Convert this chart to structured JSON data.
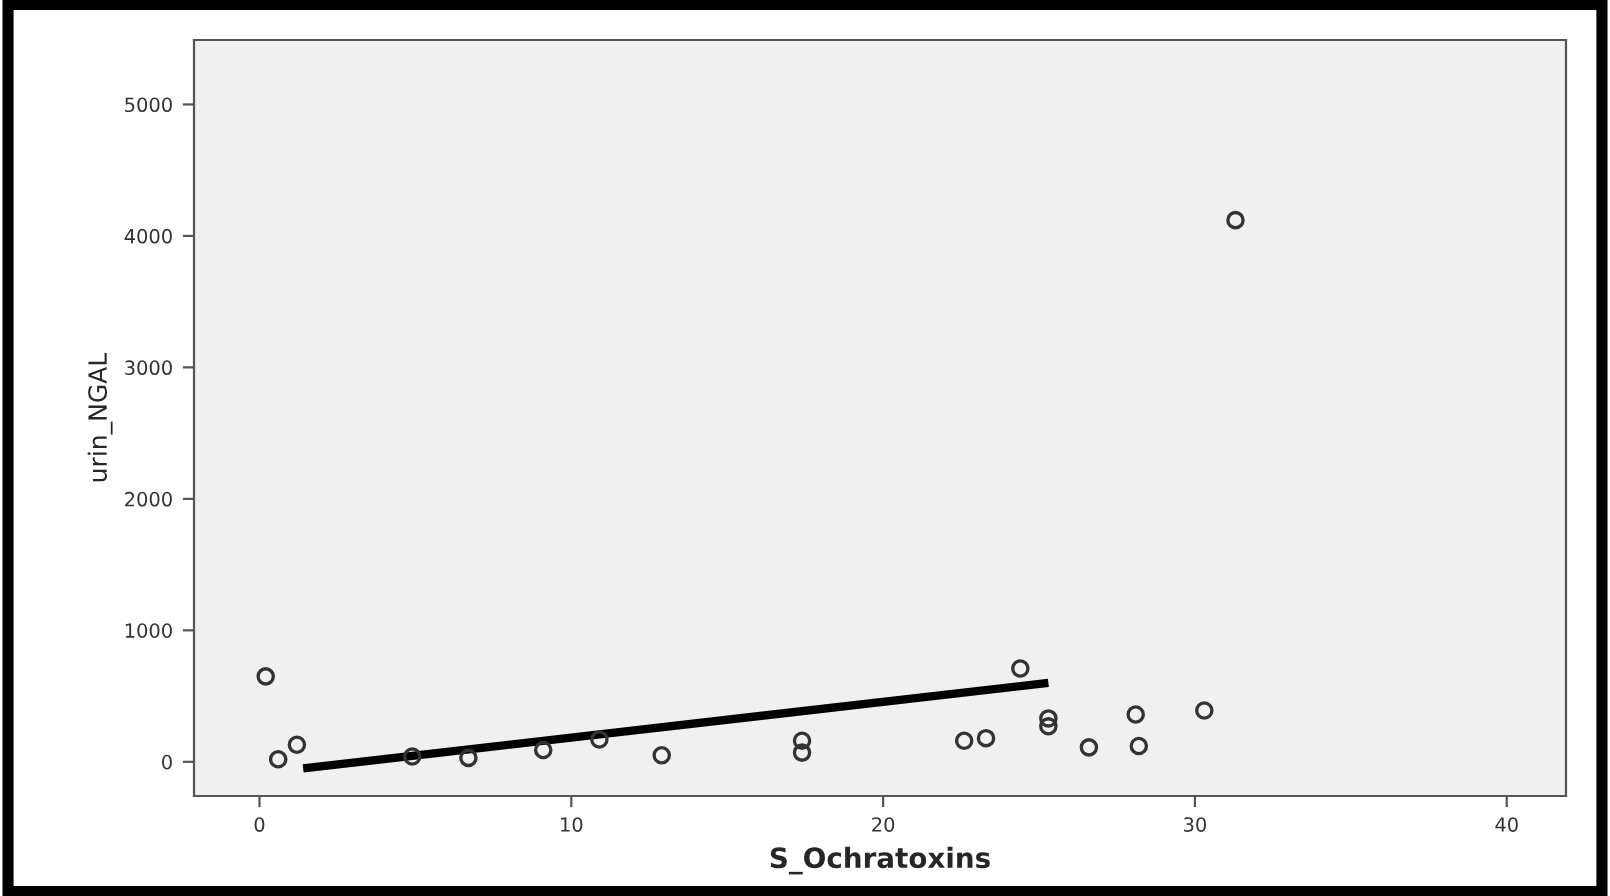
{
  "chart_data": {
    "type": "scatter",
    "xlabel": "S_Ochratoxins",
    "ylabel": "urin_NGAL",
    "marker": "circle",
    "grid": false,
    "xlim": [
      -2.1,
      41.9
    ],
    "xticks": [
      0,
      10,
      20,
      30,
      40
    ],
    "ylim": [
      -260,
      5490
    ],
    "yticks": [
      0,
      1000,
      2000,
      3000,
      4000,
      5000
    ],
    "series": [
      {
        "color": "#333333",
        "x": [
          0.2,
          0.6,
          1.2,
          4.9,
          6.7,
          9.1,
          10.9,
          12.9,
          17.4,
          17.4,
          22.6,
          23.3,
          24.4,
          25.3,
          25.3,
          26.6,
          28.1,
          28.2,
          30.3,
          31.3
        ],
        "values": [
          650,
          20,
          130,
          40,
          30,
          90,
          170,
          50,
          160,
          70,
          160,
          180,
          710,
          330,
          270,
          110,
          360,
          120,
          390,
          4120
        ]
      },
      {
        "type": "line",
        "color": "#000000",
        "marker": "none",
        "x": [
          1.4,
          25.3
        ],
        "values": [
          -50,
          600
        ]
      }
    ]
  }
}
